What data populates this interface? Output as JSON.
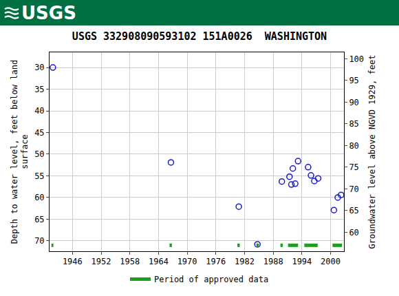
{
  "header": {
    "logo": "USGS"
  },
  "chart_data": {
    "type": "scatter",
    "title": "USGS 332908090593102 151A0026  WASHINGTON",
    "ylabel": [
      "Depth to water level, feet below land",
      "surface"
    ],
    "y2label": "Groundwater level above NGVD 1929, feet",
    "x": [
      1941.9,
      1966.6,
      1980.8,
      1984.7,
      1989.8,
      1991.4,
      1992.1,
      1991.8,
      1992.6,
      1993.2,
      1995.3,
      1995.9,
      1996.6,
      1997.4,
      2000.7,
      2001.5,
      2002.2
    ],
    "values": [
      30.0,
      51.9,
      62.1,
      70.8,
      56.3,
      55.2,
      53.3,
      57.0,
      56.8,
      51.6,
      53.0,
      54.9,
      56.2,
      55.6,
      62.9,
      60.0,
      59.4
    ],
    "color": "#1a1acc",
    "marker": "circle-open",
    "xlim": [
      1941.2,
      2002.8
    ],
    "xticks": [
      1946,
      1952,
      1958,
      1964,
      1970,
      1976,
      1982,
      1988,
      1994,
      2000
    ],
    "ylim": [
      72.4,
      26.5
    ],
    "yticks": [
      30,
      35,
      40,
      45,
      50,
      55,
      60,
      65,
      70
    ],
    "y2lim": [
      55.6,
      101.5
    ],
    "y2ticks": [
      60,
      65,
      70,
      75,
      80,
      85,
      90,
      95,
      100
    ],
    "grid": true,
    "legend": "bottom",
    "approved_periods": {
      "name": "Period of approved data",
      "color": "#1e9e1e",
      "ranges": [
        [
          1941.6,
          1942.0
        ],
        [
          1966.3,
          1966.8
        ],
        [
          1980.5,
          1981.0
        ],
        [
          1984.5,
          1985.0
        ],
        [
          1989.5,
          1990.0
        ],
        [
          1991.1,
          1993.2
        ],
        [
          1994.5,
          1997.3
        ],
        [
          2000.4,
          2002.4
        ]
      ]
    }
  }
}
